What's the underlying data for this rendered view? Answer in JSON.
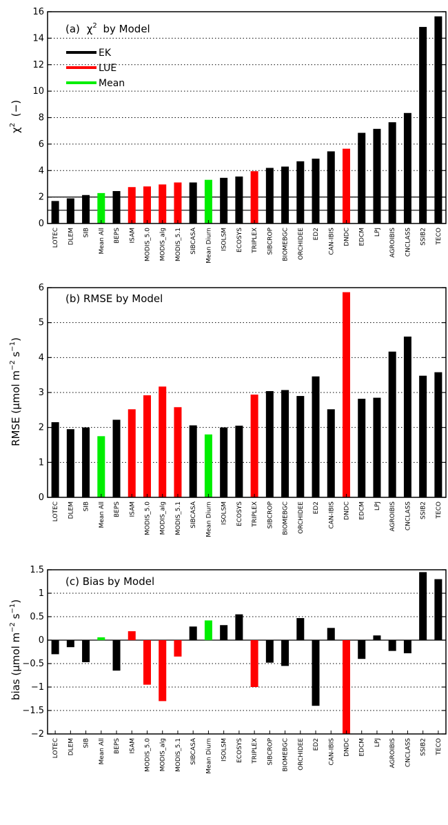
{
  "colors": {
    "EK": "#000000",
    "LUE": "#ff0000",
    "Mean": "#00ee00"
  },
  "chart_data": [
    {
      "type": "bar",
      "title_prefix": "(a)",
      "title_symbol": "χ",
      "title_suffix": "by Model",
      "ylabel": "χ² (−)",
      "ylabel_main": "χ",
      "ylabel_sup": "2",
      "ylabel_tail": "(−)",
      "ylim": [
        0,
        16
      ],
      "yticks": [
        0,
        2,
        4,
        6,
        8,
        10,
        12,
        14,
        16
      ],
      "grid": "horizontal dotted",
      "reference_lines": [
        1,
        2
      ],
      "legend": {
        "position": "top-left",
        "entries": [
          {
            "label": "EK",
            "color": "EK"
          },
          {
            "label": "LUE",
            "color": "LUE"
          },
          {
            "label": "Mean",
            "color": "Mean"
          }
        ]
      },
      "categories": [
        "LOTEC",
        "DLEM",
        "SIB",
        "Mean All",
        "BEPS",
        "ISAM",
        "MODIS_5.0",
        "MODIS_alg",
        "MODIS_5.1",
        "SIBCASA",
        "Mean Diurn",
        "ISOLSM",
        "ECOSYS",
        "TRIPLEX",
        "SIBCROP",
        "BIOMEBGC",
        "ORCHIDEE",
        "ED2",
        "CAN-IBIS",
        "DNDC",
        "EDCM",
        "LPJ",
        "AGROIBIS",
        "CNCLASS",
        "SSIB2",
        "TECO"
      ],
      "groups": [
        "EK",
        "EK",
        "EK",
        "Mean",
        "EK",
        "LUE",
        "LUE",
        "LUE",
        "LUE",
        "EK",
        "Mean",
        "EK",
        "EK",
        "LUE",
        "EK",
        "EK",
        "EK",
        "EK",
        "EK",
        "LUE",
        "EK",
        "EK",
        "EK",
        "EK",
        "EK",
        "EK"
      ],
      "values": [
        1.7,
        1.9,
        2.15,
        2.3,
        2.45,
        2.75,
        2.8,
        2.95,
        3.1,
        3.1,
        3.3,
        3.45,
        3.55,
        3.95,
        4.2,
        4.3,
        4.7,
        4.9,
        5.45,
        5.65,
        6.85,
        7.15,
        7.65,
        8.35,
        14.85,
        15.65
      ]
    },
    {
      "type": "bar",
      "title": "(b) RMSE by Model",
      "ylabel": "RMSE (μmol m⁻² s⁻¹)",
      "ylabel_main": "RMSE (μmol m",
      "ylabel_sup1": "−2",
      "ylabel_mid": " s",
      "ylabel_sup2": "−1",
      "ylabel_tail": ")",
      "ylim": [
        0,
        6
      ],
      "yticks": [
        0,
        1,
        2,
        3,
        4,
        5,
        6
      ],
      "grid": "horizontal dotted",
      "categories": [
        "LOTEC",
        "DLEM",
        "SIB",
        "Mean All",
        "BEPS",
        "ISAM",
        "MODIS_5.0",
        "MODIS_alg",
        "MODIS_5.1",
        "SIBCASA",
        "Mean Diurn",
        "ISOLSM",
        "ECOSYS",
        "TRIPLEX",
        "SIBCROP",
        "BIOMEBGC",
        "ORCHIDEE",
        "ED2",
        "CAN-IBIS",
        "DNDC",
        "EDCM",
        "LPJ",
        "AGROIBIS",
        "CNCLASS",
        "SSIB2",
        "TECO"
      ],
      "groups": [
        "EK",
        "EK",
        "EK",
        "Mean",
        "EK",
        "LUE",
        "LUE",
        "LUE",
        "LUE",
        "EK",
        "Mean",
        "EK",
        "EK",
        "LUE",
        "EK",
        "EK",
        "EK",
        "EK",
        "EK",
        "LUE",
        "EK",
        "EK",
        "EK",
        "EK",
        "EK",
        "EK"
      ],
      "values": [
        2.15,
        1.95,
        2.0,
        1.75,
        2.22,
        2.52,
        2.92,
        3.17,
        2.58,
        2.06,
        1.8,
        2.0,
        2.05,
        2.94,
        3.04,
        3.07,
        2.9,
        3.46,
        2.52,
        5.87,
        2.82,
        2.85,
        4.17,
        4.6,
        3.48,
        3.58
      ]
    },
    {
      "type": "bar",
      "title": "(c) Bias by Model",
      "ylabel": "bias (μmol m⁻² s⁻¹)",
      "ylabel_main": "bias (μmol m",
      "ylabel_sup1": "−2",
      "ylabel_mid": " s",
      "ylabel_sup2": "−1",
      "ylabel_tail": ")",
      "ylim": [
        -2,
        1.5
      ],
      "yticks": [
        -2,
        -1.5,
        -1,
        -0.5,
        0,
        0.5,
        1,
        1.5
      ],
      "ytick_labels": [
        "−2",
        "−1.5",
        "−1",
        "−0.5",
        "0",
        "0.5",
        "1",
        "1.5"
      ],
      "grid": "horizontal dotted",
      "categories": [
        "LOTEC",
        "DLEM",
        "SIB",
        "Mean All",
        "BEPS",
        "ISAM",
        "MODIS_5.0",
        "MODIS_alg",
        "MODIS_5.1",
        "SIBCASA",
        "Mean Diurn",
        "ISOLSM",
        "ECOSYS",
        "TRIPLEX",
        "SIBCROP",
        "BIOMEBGC",
        "ORCHIDEE",
        "ED2",
        "CAN-IBIS",
        "DNDC",
        "EDCM",
        "LPJ",
        "AGROIBIS",
        "CNCLASS",
        "SSIB2",
        "TECO"
      ],
      "groups": [
        "EK",
        "EK",
        "EK",
        "Mean",
        "EK",
        "LUE",
        "LUE",
        "LUE",
        "LUE",
        "EK",
        "Mean",
        "EK",
        "EK",
        "LUE",
        "EK",
        "EK",
        "EK",
        "EK",
        "EK",
        "LUE",
        "EK",
        "EK",
        "EK",
        "EK",
        "EK",
        "EK"
      ],
      "values": [
        -0.3,
        -0.15,
        -0.47,
        0.06,
        -0.65,
        0.19,
        -0.95,
        -1.3,
        -0.35,
        0.29,
        0.42,
        0.32,
        0.55,
        -1.0,
        -0.48,
        -0.55,
        0.47,
        -1.4,
        0.26,
        -2.0,
        -0.4,
        0.1,
        -0.23,
        -0.28,
        1.45,
        1.3
      ]
    }
  ]
}
